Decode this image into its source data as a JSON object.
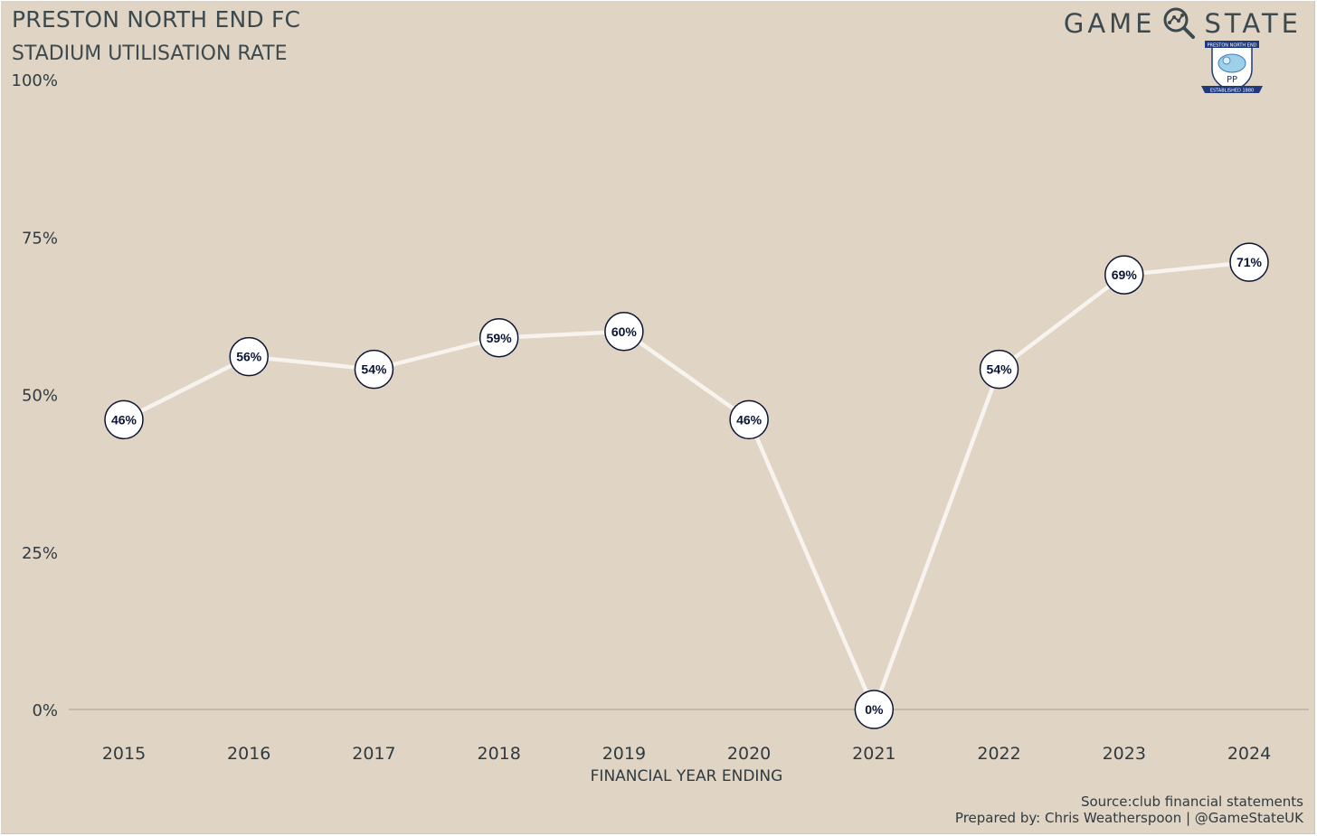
{
  "header": {
    "title": "PRESTON NORTH END FC",
    "subtitle": "STADIUM UTILISATION RATE"
  },
  "brand": {
    "word_left": "GAME",
    "word_right": "STATE",
    "icon": "magnifier-network-icon",
    "crest": {
      "icon": "preston-crest-icon",
      "banner_text": "PRESTON NORTH END",
      "letters": "PP",
      "established_text": "ESTABLISHED 1880"
    }
  },
  "chart_data": {
    "type": "line",
    "title": "STADIUM UTILISATION RATE",
    "xlabel": "FINANCIAL YEAR ENDING",
    "ylabel": "",
    "categories": [
      "2015",
      "2016",
      "2017",
      "2018",
      "2019",
      "2020",
      "2021",
      "2022",
      "2023",
      "2024"
    ],
    "values": [
      46,
      56,
      54,
      59,
      60,
      46,
      0,
      54,
      69,
      71
    ],
    "data_labels": [
      "46%",
      "56%",
      "54%",
      "59%",
      "60%",
      "46%",
      "0%",
      "54%",
      "69%",
      "71%"
    ],
    "ylim": [
      0,
      100
    ],
    "yticks": [
      0,
      25,
      50,
      75,
      100
    ],
    "ytick_labels": [
      "0%",
      "25%",
      "50%",
      "75%",
      "100%"
    ],
    "grid": false,
    "legend": "none",
    "colors": {
      "background": "#e0d4c5",
      "line": "#f7f3ee",
      "marker_fill": "#ffffff",
      "marker_stroke": "#0b1533",
      "label_text": "#0b1533",
      "axis_text": "#2f3b40",
      "baseline": "#a39c92"
    }
  },
  "footer": {
    "source": "Source:club financial statements",
    "credit": "Prepared by: Chris Weatherspoon | @GameStateUK"
  }
}
